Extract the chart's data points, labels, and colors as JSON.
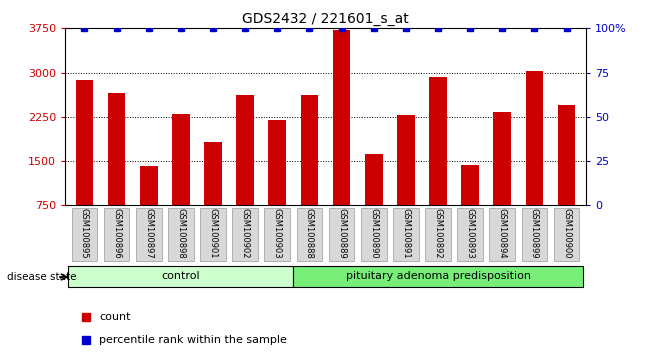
{
  "title": "GDS2432 / 221601_s_at",
  "samples": [
    "GSM100895",
    "GSM100896",
    "GSM100897",
    "GSM100898",
    "GSM100901",
    "GSM100902",
    "GSM100903",
    "GSM100888",
    "GSM100889",
    "GSM100890",
    "GSM100891",
    "GSM100892",
    "GSM100893",
    "GSM100894",
    "GSM100899",
    "GSM100900"
  ],
  "counts": [
    2880,
    2650,
    1420,
    2290,
    1830,
    2620,
    2200,
    2620,
    3730,
    1620,
    2280,
    2920,
    1430,
    2330,
    3020,
    2450
  ],
  "bar_color": "#cc0000",
  "dot_color": "#0000cc",
  "ylim_left": [
    750,
    3750
  ],
  "ylim_right": [
    0,
    100
  ],
  "yticks_left": [
    750,
    1500,
    2250,
    3000,
    3750
  ],
  "yticks_right": [
    0,
    25,
    50,
    75,
    100
  ],
  "control_samples": 7,
  "group_labels": [
    "control",
    "pituitary adenoma predisposition"
  ],
  "control_color": "#ccffcc",
  "pit_color": "#77ee77",
  "disease_state_label": "disease state",
  "legend_count_label": "count",
  "legend_pct_label": "percentile rank within the sample",
  "bar_width": 0.55,
  "bg_color": "#d8d8d8",
  "title_fontsize": 10
}
